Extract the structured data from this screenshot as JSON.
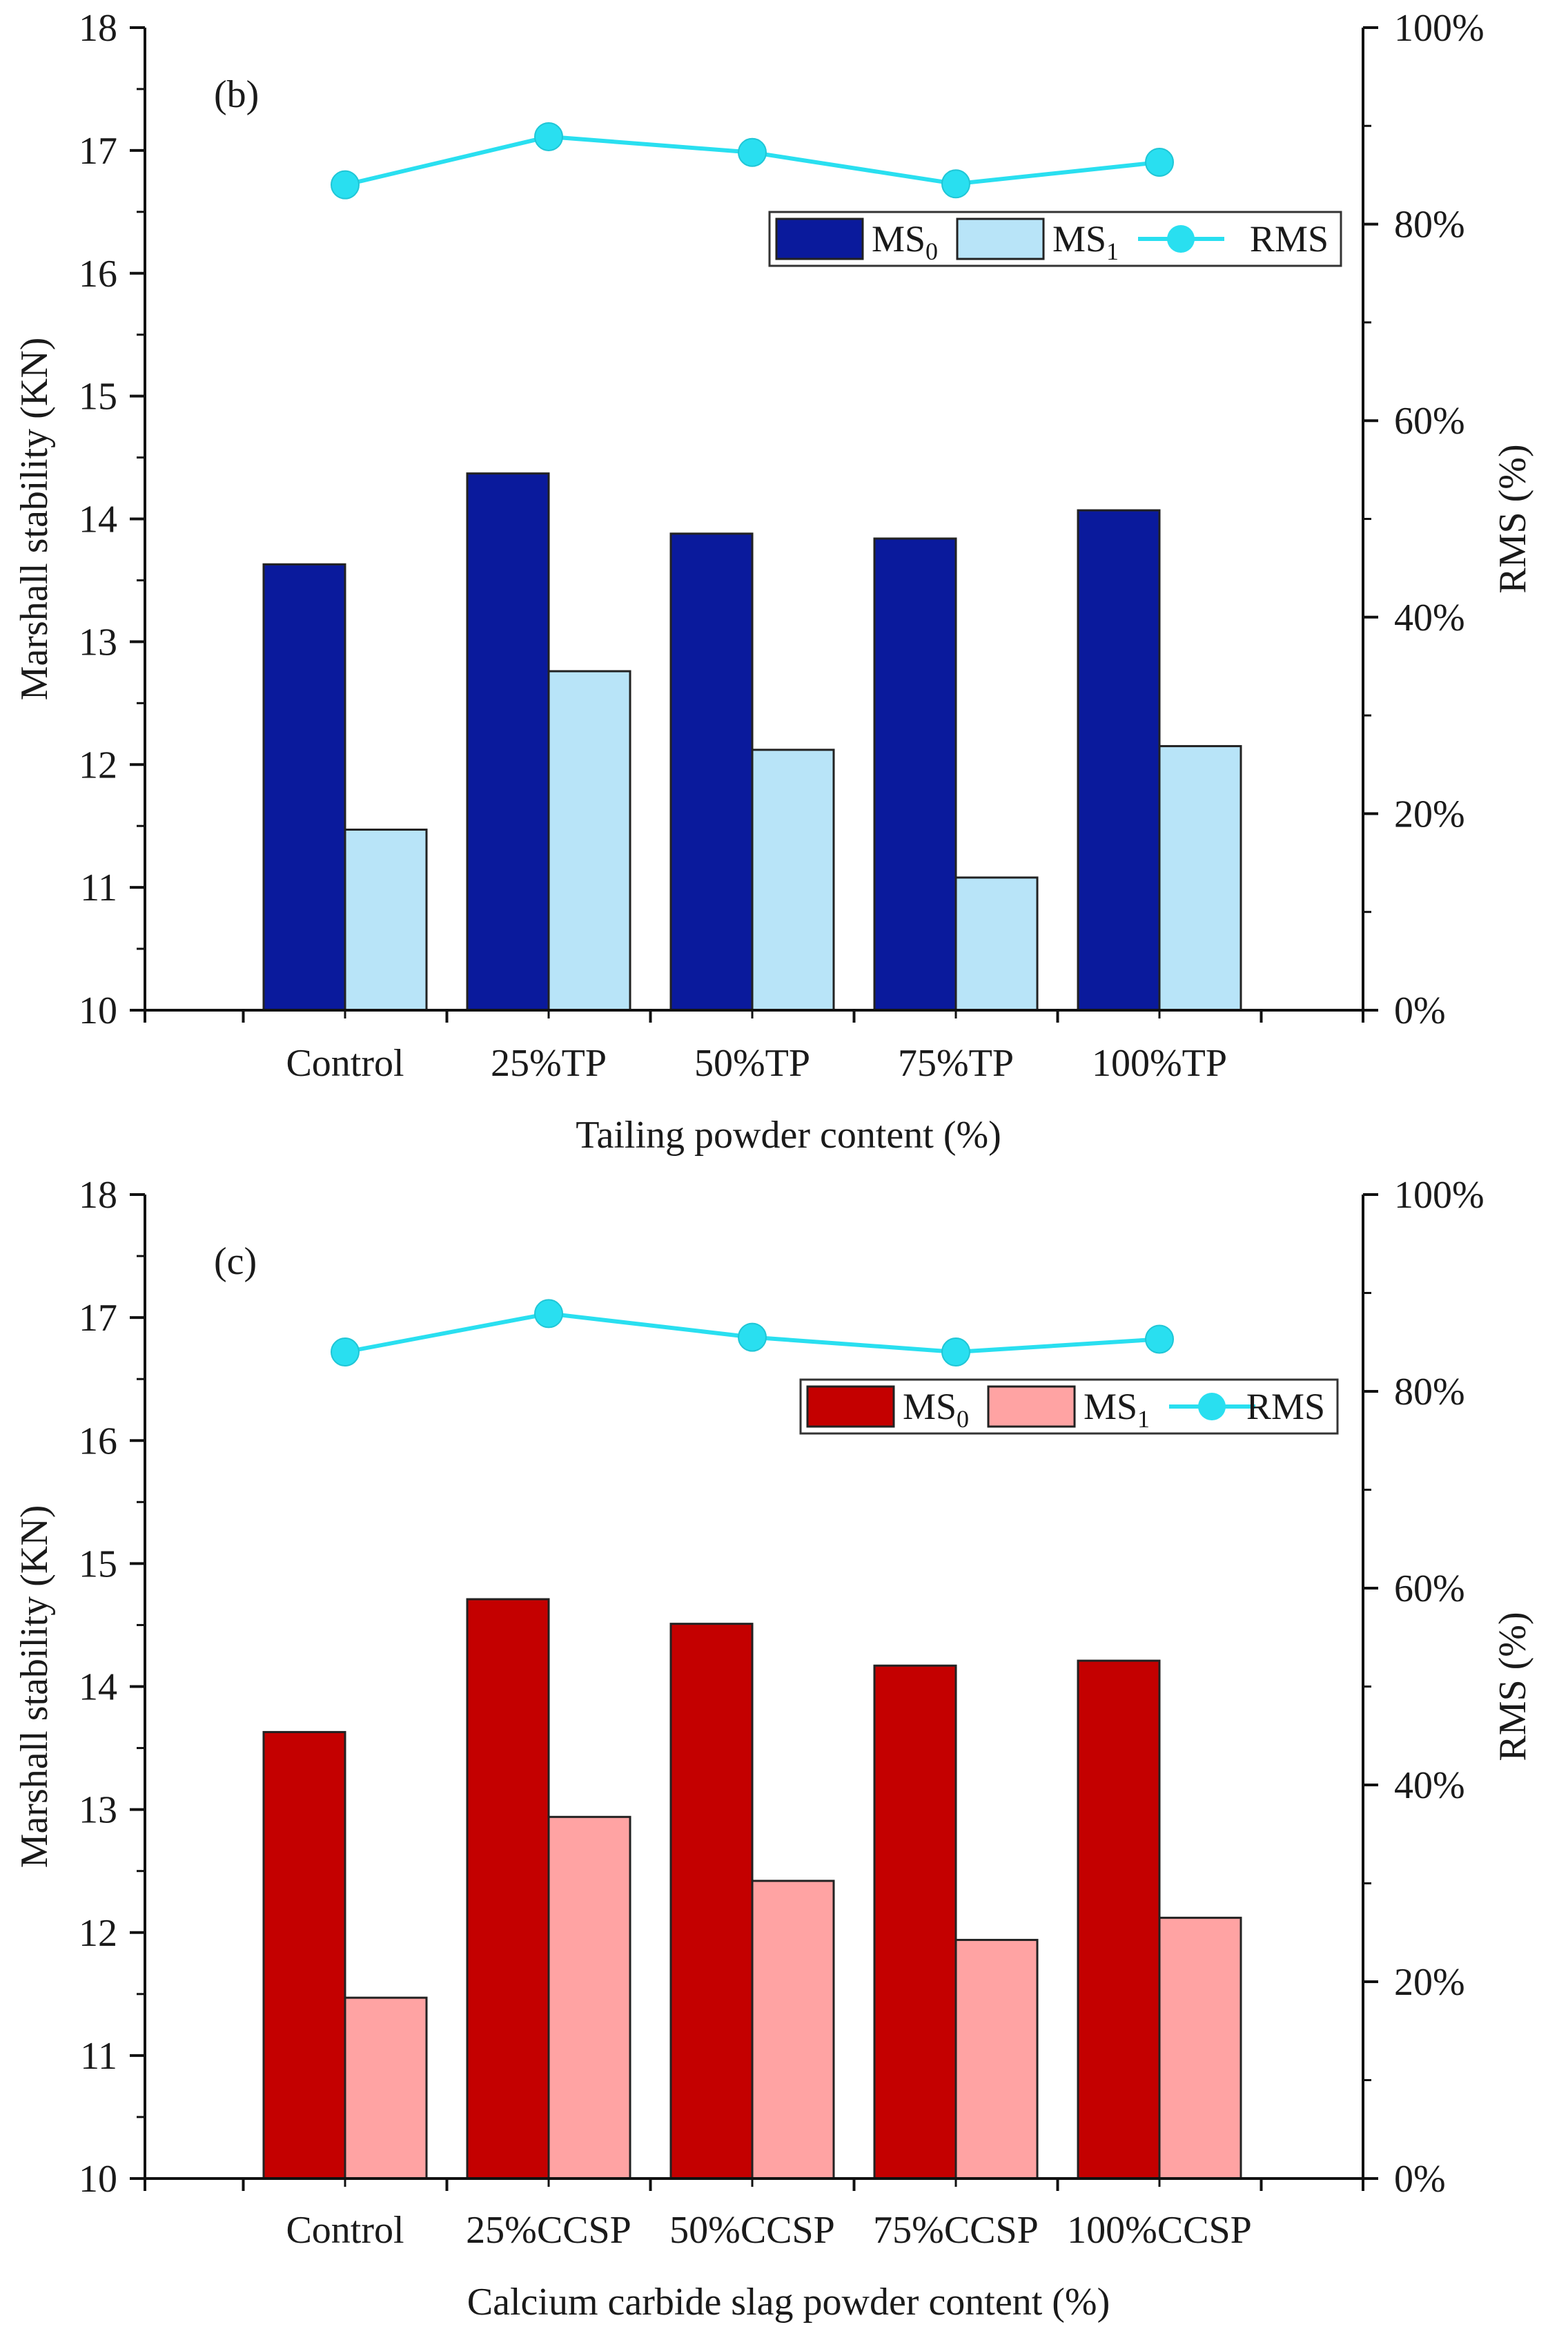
{
  "chart_data": [
    {
      "type": "bar",
      "panel_label": "(b)",
      "categories": [
        "Control",
        "25%TP",
        "50%TP",
        "75%TP",
        "100%TP"
      ],
      "xlabel": "Tailing  powder content (%)",
      "ylabel": "Marshall stability (KN)",
      "y2label": "RMS (%)",
      "ylim": [
        10,
        18
      ],
      "y2lim": [
        0,
        100
      ],
      "yticks": [
        "10",
        "11",
        "12",
        "13",
        "14",
        "15",
        "16",
        "17",
        "18"
      ],
      "y2ticks": [
        "0%",
        "20%",
        "40%",
        "60%",
        "80%",
        "100%"
      ],
      "series": [
        {
          "name": "MS",
          "sub": "0",
          "kind": "bar",
          "axis": "left",
          "color": "#0a1a9c",
          "values": [
            13.63,
            14.37,
            13.88,
            13.84,
            14.07
          ]
        },
        {
          "name": "MS",
          "sub": "1",
          "kind": "bar",
          "axis": "left",
          "color": "#b8e4f8",
          "values": [
            11.47,
            12.76,
            12.12,
            11.08,
            12.15
          ]
        },
        {
          "name": "RMS",
          "sub": "",
          "kind": "line",
          "axis": "right",
          "color": "#29dff0",
          "values": [
            84.0,
            88.9,
            87.3,
            84.1,
            86.3
          ]
        }
      ],
      "legend_position": "top-right",
      "grid": false
    },
    {
      "type": "bar",
      "panel_label": "(c)",
      "categories": [
        "Control",
        "25%CCSP",
        "50%CCSP",
        "75%CCSP",
        "100%CCSP"
      ],
      "xlabel": "Calcium carbide slag powder content (%)",
      "ylabel": "Marshall stability (KN)",
      "y2label": "RMS (%)",
      "ylim": [
        10,
        18
      ],
      "y2lim": [
        0,
        100
      ],
      "yticks": [
        "10",
        "11",
        "12",
        "13",
        "14",
        "15",
        "16",
        "17",
        "18"
      ],
      "y2ticks": [
        "0%",
        "20%",
        "40%",
        "60%",
        "80%",
        "100%"
      ],
      "series": [
        {
          "name": "MS",
          "sub": "0",
          "kind": "bar",
          "axis": "left",
          "color": "#c40000",
          "values": [
            13.63,
            14.71,
            14.51,
            14.17,
            14.21
          ]
        },
        {
          "name": "MS",
          "sub": "1",
          "kind": "bar",
          "axis": "left",
          "color": "#ffa3a3",
          "values": [
            11.47,
            12.94,
            12.42,
            11.94,
            12.12
          ]
        },
        {
          "name": "RMS",
          "sub": "",
          "kind": "line",
          "axis": "right",
          "color": "#29dff0",
          "values": [
            84.0,
            87.9,
            85.5,
            84.0,
            85.3
          ]
        }
      ],
      "legend_position": "top-right",
      "grid": false
    }
  ]
}
